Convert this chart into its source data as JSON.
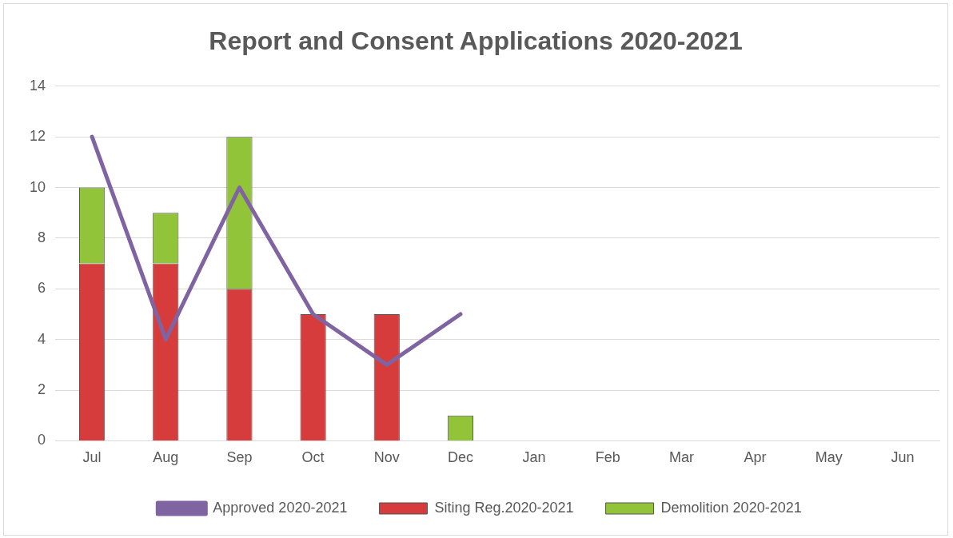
{
  "chart_data": {
    "type": "bar",
    "title": "Report and Consent Applications 2020-2021",
    "categories": [
      "Jul",
      "Aug",
      "Sep",
      "Oct",
      "Nov",
      "Dec",
      "Jan",
      "Feb",
      "Mar",
      "Apr",
      "May",
      "Jun"
    ],
    "stacked": true,
    "series": [
      {
        "name": "Siting Reg.2020-2021",
        "color": "#d63c3c",
        "values": [
          7,
          7,
          6,
          5,
          5,
          null,
          null,
          null,
          null,
          null,
          null,
          null
        ]
      },
      {
        "name": "Demolition 2020-2021",
        "color": "#92c43a",
        "values": [
          3,
          2,
          6,
          null,
          null,
          1,
          null,
          null,
          null,
          null,
          null,
          null
        ]
      },
      {
        "name": "Approved 2020-2021",
        "type": "line",
        "color": "#8064a2",
        "values": [
          12,
          4,
          10,
          5,
          3,
          5,
          null,
          null,
          null,
          null,
          null,
          null
        ]
      }
    ],
    "ylim": [
      0,
      14
    ],
    "yticks": [
      0,
      2,
      4,
      6,
      8,
      10,
      12,
      14
    ],
    "grid": "y",
    "legend": "bottom",
    "marker": "none"
  }
}
